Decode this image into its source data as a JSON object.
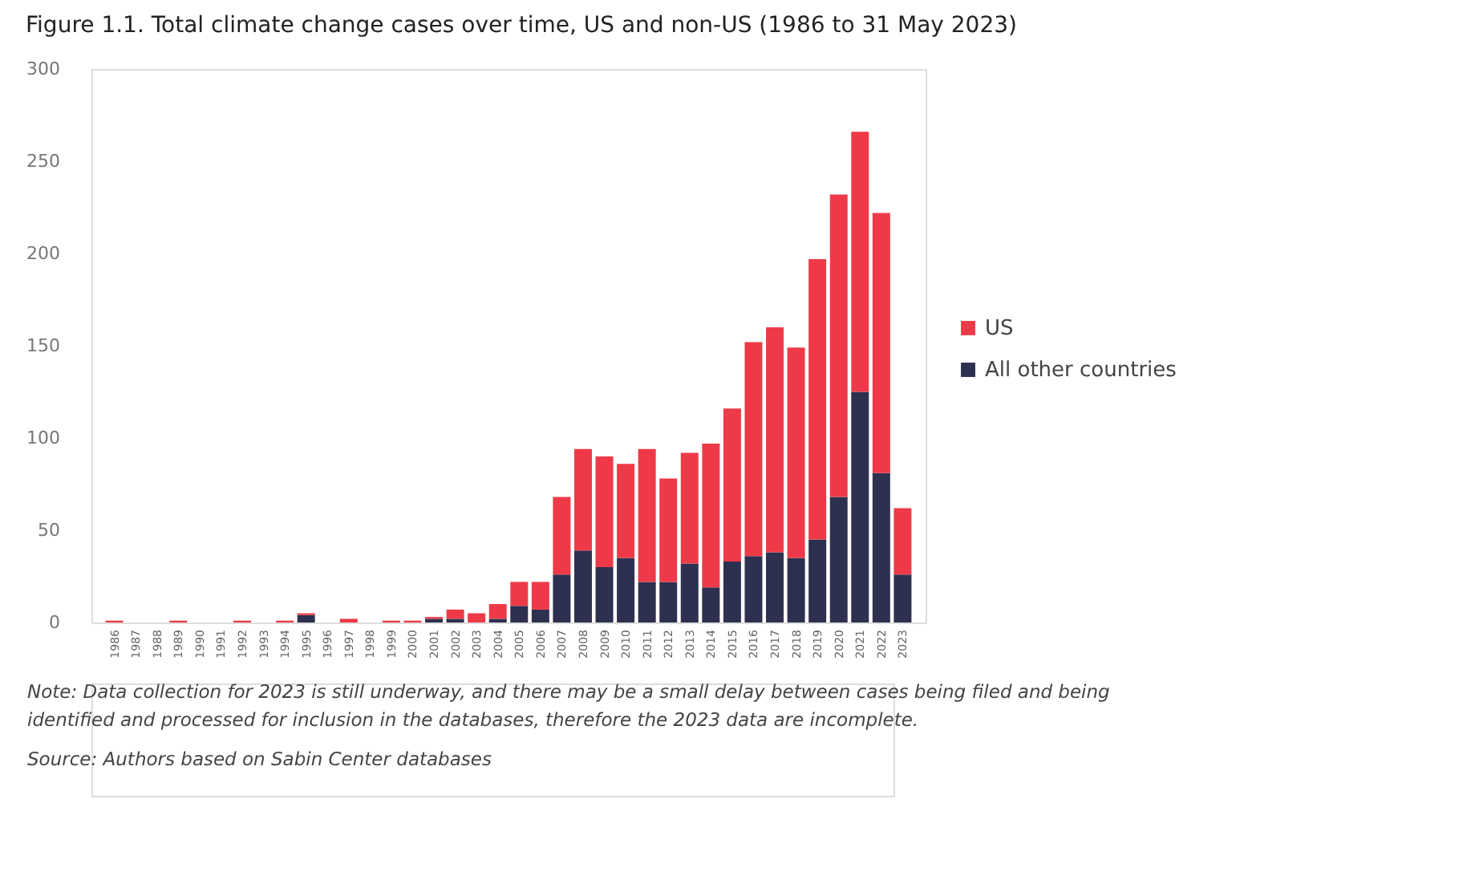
{
  "chart_data": {
    "type": "bar",
    "title": "Figure 1.1. Total climate change cases over time, US and non-US (1986 to 31 May 2023)",
    "categories": [
      "1986",
      "1987",
      "1988",
      "1989",
      "1990",
      "1991",
      "1992",
      "1993",
      "1994",
      "1995",
      "1996",
      "1997",
      "1998",
      "1999",
      "2000",
      "2001",
      "2002",
      "2003",
      "2004",
      "2005",
      "2006",
      "2007",
      "2008",
      "2009",
      "2010",
      "2011",
      "2012",
      "2013",
      "2014",
      "2015",
      "2016",
      "2017",
      "2018",
      "2019",
      "2020",
      "2021",
      "2022",
      "2023"
    ],
    "stacked": true,
    "series": [
      {
        "name": "All other countries",
        "color": "#2e3050",
        "values": [
          0,
          0,
          0,
          0,
          0,
          0,
          0,
          0,
          0,
          4,
          0,
          0,
          0,
          0,
          0,
          2,
          2,
          0,
          2,
          9,
          7,
          26,
          39,
          30,
          35,
          22,
          22,
          32,
          19,
          33,
          36,
          38,
          35,
          45,
          68,
          125,
          81,
          26
        ]
      },
      {
        "name": "US",
        "color": "#ee3a48",
        "values": [
          1,
          0,
          0,
          1,
          0,
          0,
          1,
          0,
          1,
          1,
          0,
          2,
          0,
          1,
          1,
          1,
          5,
          5,
          8,
          13,
          15,
          42,
          55,
          60,
          51,
          72,
          56,
          60,
          78,
          83,
          116,
          122,
          114,
          152,
          164,
          141,
          141,
          36
        ]
      }
    ],
    "ylim": [
      0,
      300
    ],
    "yticks": [
      0,
      50,
      100,
      150,
      200,
      250,
      300
    ],
    "grid": false,
    "legend": "right",
    "annotations": [
      "Note: Data collection for 2023 is still underway, and there may be a small delay between cases being filed and being identified and processed for inclusion in the databases, therefore the 2023 data are incomplete.",
      "Source: Authors based on Sabin Center databases"
    ]
  }
}
